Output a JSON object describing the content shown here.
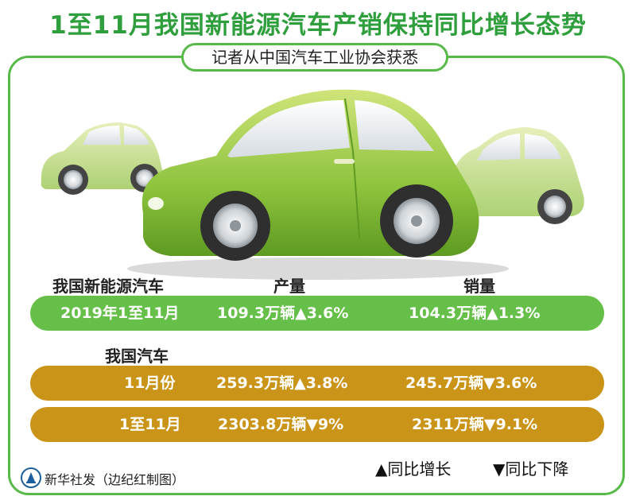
{
  "title": "1至11月我国新能源汽车产销保持同比增长态势",
  "subtitle": "记者从中国汽车工业协会获悉",
  "columns": {
    "production": "产量",
    "sales": "销量"
  },
  "nev": {
    "section_label": "我国新能源汽车",
    "row": {
      "period": "2019年1至11月",
      "production": "109.3万辆▲3.6%",
      "sales": "104.3万辆▲1.3%"
    }
  },
  "all": {
    "section_label": "我国汽车",
    "rows": [
      {
        "period": "11月份",
        "production": "259.3万辆▲3.8%",
        "sales": "245.7万辆▼3.6%"
      },
      {
        "period": "1至11月",
        "production": "2303.8万辆▼9%",
        "sales": "2311万辆▼9.1%"
      }
    ]
  },
  "legend": {
    "up": "▲同比增长",
    "down": "▼同比下降"
  },
  "credit": "新华社发（边纪红制图）",
  "colors": {
    "green": "#66bf48",
    "gold": "#c99418",
    "title_green": "#2f9e3c"
  }
}
